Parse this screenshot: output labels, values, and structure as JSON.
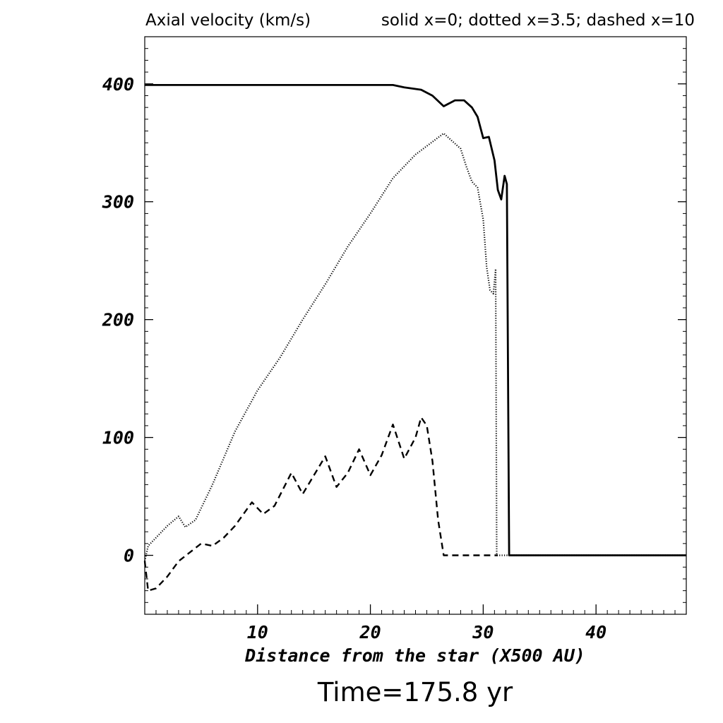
{
  "chart_data": {
    "type": "line",
    "title": "Axial velocity (km/s)",
    "legend_text": "solid x=0; dotted x=3.5; dashed x=10",
    "xlabel": "Distance from the star (X500 AU)",
    "ylabel": "",
    "footer": "Time=175.8 yr",
    "xlim": [
      0,
      48
    ],
    "ylim": [
      -50,
      440
    ],
    "x_ticks": [
      10,
      20,
      30,
      40
    ],
    "y_ticks": [
      0,
      100,
      200,
      300,
      400
    ],
    "x_tick_labels": [
      "10",
      "20",
      "30",
      "40"
    ],
    "y_tick_labels": [
      "0",
      "100",
      "200",
      "300",
      "400"
    ],
    "grid": false,
    "series": [
      {
        "style": "solid",
        "points": [
          [
            0,
            399
          ],
          [
            22,
            399
          ],
          [
            23,
            397
          ],
          [
            24.5,
            395
          ],
          [
            25.5,
            390
          ],
          [
            26.5,
            381
          ],
          [
            27.5,
            386
          ],
          [
            28.3,
            386
          ],
          [
            29,
            380
          ],
          [
            29.5,
            372
          ],
          [
            30,
            354
          ],
          [
            30.5,
            355
          ],
          [
            31,
            335
          ],
          [
            31.3,
            310
          ],
          [
            31.6,
            302
          ],
          [
            31.9,
            322
          ],
          [
            32.1,
            315
          ],
          [
            32.3,
            0
          ],
          [
            48,
            0
          ]
        ]
      },
      {
        "style": "dotted",
        "points": [
          [
            0,
            -5
          ],
          [
            0.3,
            8
          ],
          [
            1,
            15
          ],
          [
            2,
            25
          ],
          [
            3,
            33
          ],
          [
            3.6,
            24
          ],
          [
            4.5,
            30
          ],
          [
            6,
            60
          ],
          [
            8,
            105
          ],
          [
            10,
            140
          ],
          [
            12,
            168
          ],
          [
            14,
            200
          ],
          [
            16,
            230
          ],
          [
            18,
            262
          ],
          [
            20,
            290
          ],
          [
            22,
            320
          ],
          [
            24,
            340
          ],
          [
            26.5,
            358
          ],
          [
            28,
            345
          ],
          [
            28.5,
            330
          ],
          [
            29,
            317
          ],
          [
            29.5,
            312
          ],
          [
            30,
            285
          ],
          [
            30.3,
            245
          ],
          [
            30.6,
            225
          ],
          [
            30.9,
            222
          ],
          [
            31.1,
            243
          ],
          [
            31.2,
            0
          ],
          [
            48,
            0
          ]
        ]
      },
      {
        "style": "dashed",
        "points": [
          [
            0,
            -5
          ],
          [
            0.3,
            -30
          ],
          [
            1,
            -28
          ],
          [
            2,
            -18
          ],
          [
            3,
            -5
          ],
          [
            5,
            10
          ],
          [
            6,
            8
          ],
          [
            7,
            15
          ],
          [
            8,
            25
          ],
          [
            9.5,
            45
          ],
          [
            10.5,
            35
          ],
          [
            11.5,
            42
          ],
          [
            13,
            70
          ],
          [
            14,
            52
          ],
          [
            15,
            68
          ],
          [
            16,
            84
          ],
          [
            17,
            58
          ],
          [
            18,
            70
          ],
          [
            19,
            90
          ],
          [
            20,
            68
          ],
          [
            21,
            85
          ],
          [
            22,
            111
          ],
          [
            23,
            82
          ],
          [
            24,
            100
          ],
          [
            24.5,
            117
          ],
          [
            25,
            110
          ],
          [
            25.5,
            80
          ],
          [
            26,
            30
          ],
          [
            26.5,
            0
          ],
          [
            31.3,
            0
          ]
        ]
      }
    ]
  }
}
